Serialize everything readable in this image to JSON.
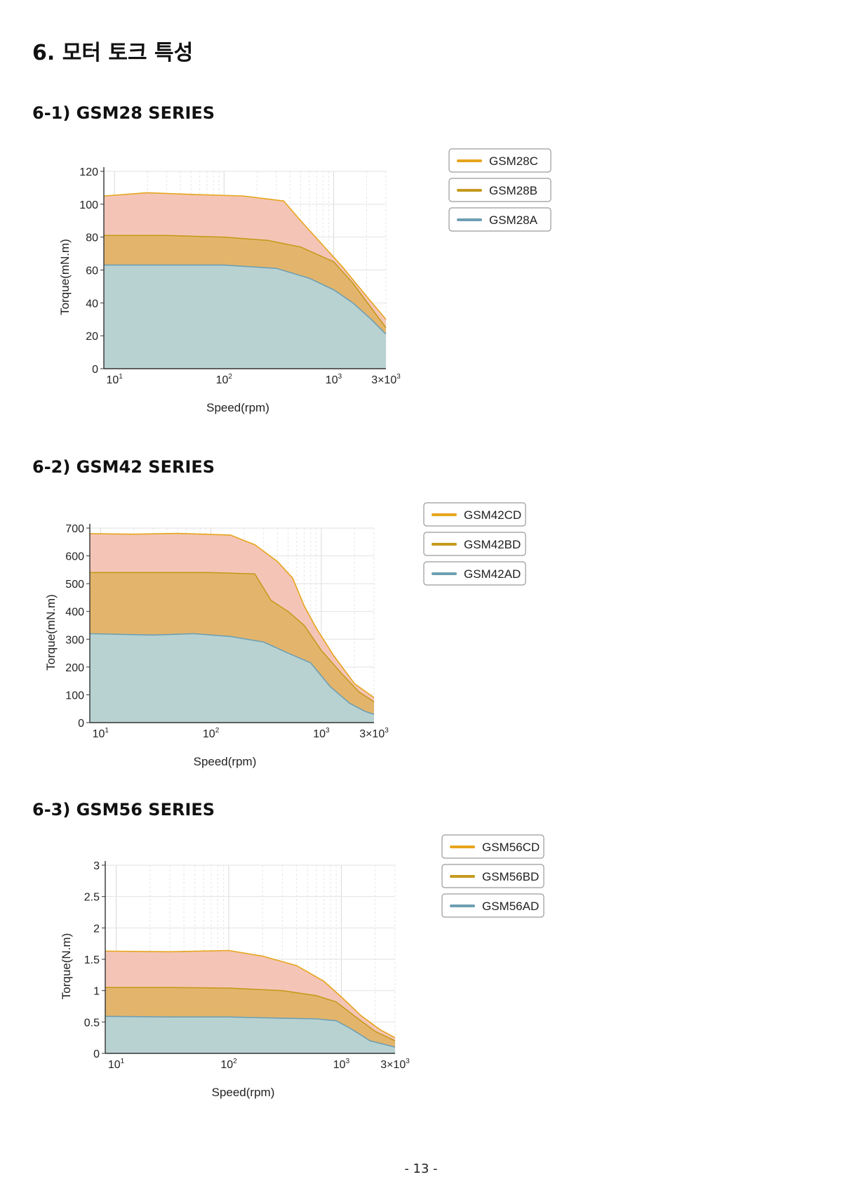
{
  "page": {
    "title": "6. 모터 토크 특성",
    "page_number": "- 13 -"
  },
  "colors": {
    "C": "#e6a51c",
    "B": "#c59a1e",
    "A": "#6e9fb3",
    "fillC": "#f4c5b6",
    "fillB": "#e3b56c",
    "fillA": "#b8d2d2"
  },
  "sections": [
    {
      "title": "6-1) GSM28 SERIES",
      "chart_data": {
        "type": "area",
        "xlabel": "Speed(rpm)",
        "ylabel": "Torque(mN.m)",
        "x_scale": "log",
        "xlim": [
          8,
          3000
        ],
        "ylim": [
          0,
          120
        ],
        "y_ticks": [
          0,
          20,
          40,
          60,
          80,
          100,
          120
        ],
        "x_ticks": [
          {
            "v": 10,
            "base": "10",
            "exp": "1"
          },
          {
            "v": 100,
            "base": "10",
            "exp": "2"
          },
          {
            "v": 1000,
            "base": "10",
            "exp": "3"
          },
          {
            "v": 3000,
            "base": "3×10",
            "exp": "3"
          }
        ],
        "grid": true,
        "legend": "top-right",
        "series": [
          {
            "name": "GSM28C",
            "key": "C",
            "points": [
              [
                8,
                105
              ],
              [
                20,
                107
              ],
              [
                50,
                106
              ],
              [
                150,
                105
              ],
              [
                350,
                102
              ],
              [
                500,
                90
              ],
              [
                800,
                75
              ],
              [
                1200,
                62
              ],
              [
                2000,
                44
              ],
              [
                3000,
                30
              ]
            ]
          },
          {
            "name": "GSM28B",
            "key": "B",
            "points": [
              [
                8,
                81
              ],
              [
                30,
                81
              ],
              [
                100,
                80
              ],
              [
                250,
                78
              ],
              [
                500,
                74
              ],
              [
                1000,
                65
              ],
              [
                1500,
                52
              ],
              [
                2200,
                37
              ],
              [
                3000,
                25
              ]
            ]
          },
          {
            "name": "GSM28A",
            "key": "A",
            "points": [
              [
                8,
                63
              ],
              [
                30,
                63
              ],
              [
                100,
                63
              ],
              [
                300,
                61
              ],
              [
                600,
                55
              ],
              [
                1000,
                48
              ],
              [
                1500,
                40
              ],
              [
                2200,
                30
              ],
              [
                3000,
                21
              ]
            ]
          }
        ]
      }
    },
    {
      "title": "6-2) GSM42 SERIES",
      "chart_data": {
        "type": "area",
        "xlabel": "Speed(rpm)",
        "ylabel": "Torque(mN.m)",
        "x_scale": "log",
        "xlim": [
          8,
          3000
        ],
        "ylim": [
          0,
          700
        ],
        "y_ticks": [
          0,
          100,
          200,
          300,
          400,
          500,
          600,
          700
        ],
        "x_ticks": [
          {
            "v": 10,
            "base": "10",
            "exp": "1"
          },
          {
            "v": 100,
            "base": "10",
            "exp": "2"
          },
          {
            "v": 1000,
            "base": "10",
            "exp": "3"
          },
          {
            "v": 3000,
            "base": "3×10",
            "exp": "3"
          }
        ],
        "grid": true,
        "legend": "top-right",
        "series": [
          {
            "name": "GSM42CD",
            "key": "C",
            "points": [
              [
                8,
                680
              ],
              [
                20,
                678
              ],
              [
                50,
                681
              ],
              [
                150,
                675
              ],
              [
                250,
                640
              ],
              [
                400,
                580
              ],
              [
                550,
                520
              ],
              [
                700,
                420
              ],
              [
                900,
                340
              ],
              [
                1300,
                240
              ],
              [
                2000,
                140
              ],
              [
                3000,
                90
              ]
            ]
          },
          {
            "name": "GSM42BD",
            "key": "B",
            "points": [
              [
                8,
                540
              ],
              [
                30,
                540
              ],
              [
                100,
                540
              ],
              [
                250,
                535
              ],
              [
                350,
                440
              ],
              [
                500,
                400
              ],
              [
                700,
                350
              ],
              [
                1000,
                260
              ],
              [
                1500,
                180
              ],
              [
                2200,
                110
              ],
              [
                3000,
                75
              ]
            ]
          },
          {
            "name": "GSM42AD",
            "key": "A",
            "points": [
              [
                8,
                320
              ],
              [
                30,
                315
              ],
              [
                70,
                320
              ],
              [
                150,
                310
              ],
              [
                300,
                290
              ],
              [
                500,
                250
              ],
              [
                800,
                215
              ],
              [
                1200,
                130
              ],
              [
                1800,
                70
              ],
              [
                2500,
                40
              ],
              [
                3000,
                30
              ]
            ]
          }
        ]
      }
    },
    {
      "title": "6-3) GSM56 SERIES",
      "chart_data": {
        "type": "area",
        "xlabel": "Speed(rpm)",
        "ylabel": "Torque(N.m)",
        "x_scale": "log",
        "xlim": [
          8,
          3000
        ],
        "ylim": [
          0,
          3
        ],
        "y_ticks": [
          0,
          0.5,
          1,
          1.5,
          2,
          2.5,
          3
        ],
        "x_ticks": [
          {
            "v": 10,
            "base": "10",
            "exp": "1"
          },
          {
            "v": 100,
            "base": "10",
            "exp": "2"
          },
          {
            "v": 1000,
            "base": "10",
            "exp": "3"
          },
          {
            "v": 3000,
            "base": "3×10",
            "exp": "3"
          }
        ],
        "grid": true,
        "legend": "top-right",
        "series": [
          {
            "name": "GSM56CD",
            "key": "C",
            "points": [
              [
                8,
                1.63
              ],
              [
                30,
                1.62
              ],
              [
                100,
                1.64
              ],
              [
                200,
                1.55
              ],
              [
                400,
                1.4
              ],
              [
                700,
                1.15
              ],
              [
                1000,
                0.9
              ],
              [
                1500,
                0.6
              ],
              [
                2200,
                0.38
              ],
              [
                3000,
                0.25
              ]
            ]
          },
          {
            "name": "GSM56BD",
            "key": "B",
            "points": [
              [
                8,
                1.05
              ],
              [
                30,
                1.05
              ],
              [
                100,
                1.04
              ],
              [
                300,
                1.0
              ],
              [
                600,
                0.92
              ],
              [
                900,
                0.82
              ],
              [
                1300,
                0.6
              ],
              [
                2000,
                0.35
              ],
              [
                3000,
                0.2
              ]
            ]
          },
          {
            "name": "GSM56AD",
            "key": "A",
            "points": [
              [
                8,
                0.59
              ],
              [
                30,
                0.58
              ],
              [
                100,
                0.58
              ],
              [
                300,
                0.56
              ],
              [
                600,
                0.55
              ],
              [
                900,
                0.52
              ],
              [
                1200,
                0.4
              ],
              [
                1800,
                0.2
              ],
              [
                3000,
                0.1
              ]
            ]
          }
        ]
      }
    }
  ]
}
